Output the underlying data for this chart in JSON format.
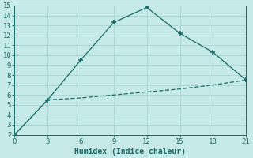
{
  "xlabel": "Humidex (Indice chaleur)",
  "bg_color": "#c5eae7",
  "grid_color": "#aad4d0",
  "line_color": "#1a6b68",
  "xlim": [
    0,
    21
  ],
  "ylim": [
    2,
    15
  ],
  "xticks": [
    0,
    3,
    6,
    9,
    12,
    15,
    18,
    21
  ],
  "yticks": [
    2,
    3,
    4,
    5,
    6,
    7,
    8,
    9,
    10,
    11,
    12,
    13,
    14,
    15
  ],
  "line1_x": [
    0,
    3,
    6,
    9,
    12,
    15,
    18,
    21
  ],
  "line1_y": [
    2,
    5.5,
    9.5,
    13.3,
    14.8,
    12.2,
    10.3,
    7.5
  ],
  "line2_x": [
    0,
    3,
    6,
    9,
    12,
    15,
    18,
    21
  ],
  "line2_y": [
    2,
    5.5,
    5.7,
    6.0,
    6.3,
    6.6,
    7.0,
    7.5
  ],
  "marker": "+",
  "marker_size": 4,
  "linewidth": 0.9,
  "xlabel_fontsize": 7,
  "tick_fontsize": 6.5
}
